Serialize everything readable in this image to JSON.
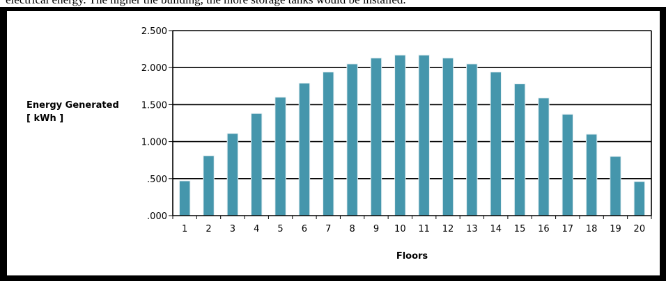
{
  "caption": "electrical energy. The higher the building, the more storage tanks would be installed.",
  "chart_data": {
    "type": "bar",
    "title": "",
    "xlabel": "Floors",
    "ylabel": "Energy Generated",
    "ylabel_unit": "[ kWh ]",
    "categories": [
      "1",
      "2",
      "3",
      "4",
      "5",
      "6",
      "7",
      "8",
      "9",
      "10",
      "11",
      "12",
      "13",
      "14",
      "15",
      "16",
      "17",
      "18",
      "19",
      "20"
    ],
    "values": [
      0.47,
      0.81,
      1.11,
      1.38,
      1.6,
      1.79,
      1.94,
      2.05,
      2.13,
      2.17,
      2.17,
      2.13,
      2.05,
      1.94,
      1.78,
      1.59,
      1.37,
      1.1,
      0.8,
      0.46
    ],
    "ylim": [
      0,
      2.5
    ],
    "yticks": [
      0,
      0.5,
      1.0,
      1.5,
      2.0,
      2.5
    ],
    "ytick_labels": [
      ".000",
      ".500",
      "1.000",
      "1.500",
      "2.000",
      "2.500"
    ],
    "grid": true,
    "legend": "none",
    "bar_color": "#4596ac",
    "bar_edge_color": "#e8f1f4"
  }
}
